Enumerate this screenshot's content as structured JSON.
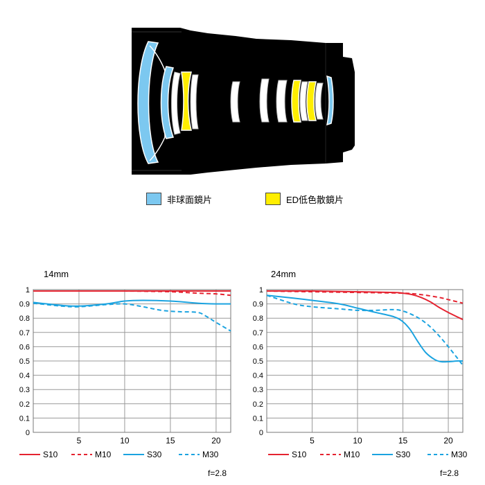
{
  "lens_legend": [
    {
      "label": "非球面鏡片",
      "color": "#7cc8f0"
    },
    {
      "label": "ED低色散鏡片",
      "color": "#ffee00"
    }
  ],
  "colors": {
    "red": "#e52330",
    "blue": "#1aa3e0",
    "body": "#000000"
  },
  "chart_data": [
    {
      "type": "line",
      "title": "14mm",
      "xlim": [
        0,
        21.6
      ],
      "ylim": [
        0,
        1
      ],
      "xticks": [
        5,
        10,
        15,
        20
      ],
      "yticks": [
        0,
        0.1,
        0.2,
        0.3,
        0.4,
        0.5,
        0.6,
        0.7,
        0.8,
        0.9,
        1
      ],
      "aperture_note": "f=2.8",
      "series": [
        {
          "name": "S10",
          "color": "#e52330",
          "dashed": false,
          "x": [
            0,
            5,
            10,
            15,
            20,
            21.6
          ],
          "y": [
            0.99,
            0.99,
            0.99,
            0.99,
            0.99,
            0.99
          ]
        },
        {
          "name": "M10",
          "color": "#e52330",
          "dashed": true,
          "x": [
            0,
            5,
            10,
            15,
            18,
            20,
            21.6
          ],
          "y": [
            0.99,
            0.99,
            0.99,
            0.985,
            0.975,
            0.97,
            0.96
          ]
        },
        {
          "name": "S30",
          "color": "#1aa3e0",
          "dashed": false,
          "x": [
            0,
            3,
            5,
            8,
            10,
            12,
            15,
            18,
            20,
            21.6
          ],
          "y": [
            0.91,
            0.89,
            0.885,
            0.9,
            0.92,
            0.925,
            0.92,
            0.905,
            0.9,
            0.9
          ]
        },
        {
          "name": "M30",
          "color": "#1aa3e0",
          "dashed": true,
          "x": [
            0,
            3,
            5,
            8,
            10,
            12,
            14,
            16,
            18,
            19,
            20,
            21.6
          ],
          "y": [
            0.905,
            0.885,
            0.88,
            0.895,
            0.9,
            0.88,
            0.855,
            0.845,
            0.84,
            0.81,
            0.77,
            0.71
          ]
        }
      ]
    },
    {
      "type": "line",
      "title": "24mm",
      "xlim": [
        0,
        21.6
      ],
      "ylim": [
        0,
        1
      ],
      "xticks": [
        5,
        10,
        15,
        20
      ],
      "yticks": [
        0,
        0.1,
        0.2,
        0.3,
        0.4,
        0.5,
        0.6,
        0.7,
        0.8,
        0.9,
        1
      ],
      "aperture_note": "f=2.8",
      "series": [
        {
          "name": "S10",
          "color": "#e52330",
          "dashed": false,
          "x": [
            0,
            5,
            10,
            14,
            15,
            16,
            17,
            18,
            19,
            20,
            21.6
          ],
          "y": [
            0.99,
            0.99,
            0.985,
            0.98,
            0.975,
            0.965,
            0.945,
            0.915,
            0.875,
            0.84,
            0.79
          ]
        },
        {
          "name": "M10",
          "color": "#e52330",
          "dashed": true,
          "x": [
            0,
            5,
            10,
            15,
            17,
            19,
            20,
            21.6
          ],
          "y": [
            0.99,
            0.985,
            0.98,
            0.975,
            0.965,
            0.945,
            0.93,
            0.905
          ]
        },
        {
          "name": "S30",
          "color": "#1aa3e0",
          "dashed": false,
          "x": [
            0,
            3,
            5,
            8,
            10,
            12,
            14,
            15,
            15.8,
            16.6,
            17.5,
            18.5,
            19.2,
            20,
            21,
            21.6
          ],
          "y": [
            0.96,
            0.94,
            0.925,
            0.9,
            0.87,
            0.84,
            0.81,
            0.775,
            0.72,
            0.64,
            0.56,
            0.51,
            0.495,
            0.495,
            0.5,
            0.5
          ]
        },
        {
          "name": "M30",
          "color": "#1aa3e0",
          "dashed": true,
          "x": [
            0,
            3,
            5,
            8,
            10,
            12,
            14,
            15,
            16,
            17,
            18,
            19,
            20,
            21,
            21.6
          ],
          "y": [
            0.96,
            0.9,
            0.88,
            0.865,
            0.855,
            0.855,
            0.86,
            0.85,
            0.825,
            0.79,
            0.74,
            0.675,
            0.6,
            0.52,
            0.47
          ]
        }
      ]
    }
  ]
}
